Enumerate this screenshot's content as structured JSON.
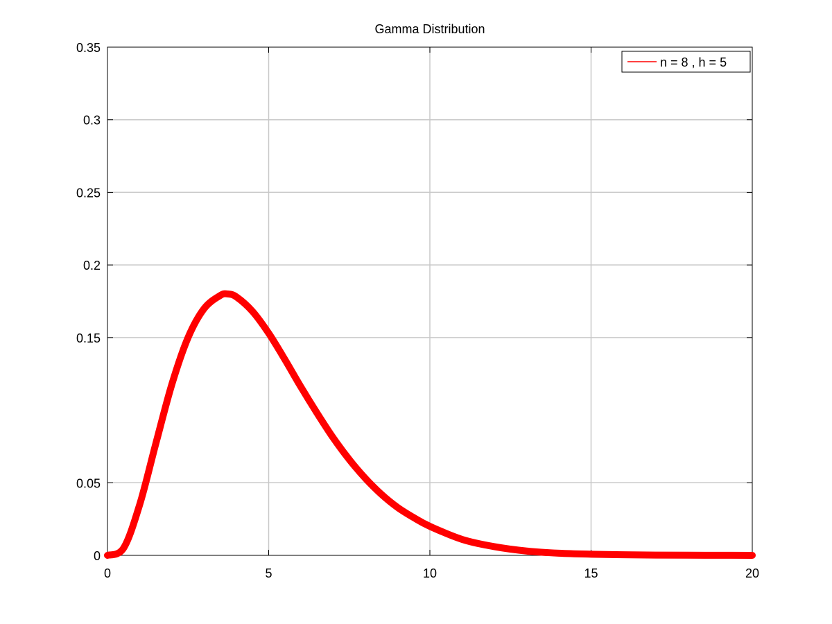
{
  "chart_data": {
    "type": "line",
    "title": "Gamma Distribution",
    "xlabel": "",
    "ylabel": "",
    "xlim": [
      0,
      20
    ],
    "ylim": [
      0,
      0.35
    ],
    "xticks": [
      0,
      5,
      10,
      15,
      20
    ],
    "xtick_labels": [
      "0",
      "5",
      "10",
      "15",
      "20"
    ],
    "yticks": [
      0,
      0.05,
      0.15,
      0.2,
      0.25,
      0.3,
      0.35
    ],
    "ytick_labels": [
      "0",
      "0.05",
      "0.15",
      "0.2",
      "0.25",
      "0.3",
      "0.35"
    ],
    "grid": true,
    "legend_position": "top-right",
    "series": [
      {
        "name": "n = 8 , h = 5",
        "color": "#ff0000",
        "x": [
          0,
          0.5,
          1,
          1.5,
          2,
          2.5,
          3,
          3.5,
          3.73,
          4,
          4.5,
          5,
          5.5,
          6,
          6.5,
          7,
          7.5,
          8,
          8.5,
          9,
          9.5,
          10,
          11,
          12,
          13,
          14,
          15,
          16,
          17,
          18,
          19,
          20
        ],
        "y": [
          0,
          0.005,
          0.035,
          0.077,
          0.118,
          0.15,
          0.17,
          0.179,
          0.18,
          0.178,
          0.168,
          0.153,
          0.135,
          0.116,
          0.098,
          0.081,
          0.066,
          0.053,
          0.042,
          0.033,
          0.026,
          0.02,
          0.011,
          0.006,
          0.003,
          0.0015,
          0.0008,
          0.0004,
          0.0002,
          0.0001,
          5e-05,
          2e-05
        ]
      }
    ]
  }
}
